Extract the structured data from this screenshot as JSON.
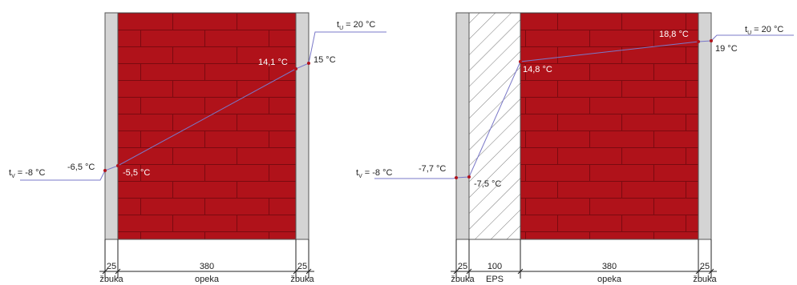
{
  "colors": {
    "brick": "#b0121a",
    "mortar": "#7a0a10",
    "plaster": "#d4d4d4",
    "line": "#7a78c8",
    "ink": "#222222"
  },
  "left_wall": {
    "outside_temp": "t",
    "outside_sub": "V",
    "outside_value": " = -8 °C",
    "inside_temp": "t",
    "inside_sub": "U",
    "inside_value": " = 20 °C",
    "surface_outer": "-6,5 °C",
    "interface_outer": "-5,5 °C",
    "interface_inner": "14,1 °C",
    "surface_inner": "15 °C",
    "dims": [
      "25",
      "380",
      "25"
    ],
    "layers": [
      "žbuka",
      "opeka",
      "žbuka"
    ]
  },
  "right_wall": {
    "outside_temp": "t",
    "outside_sub": "V",
    "outside_value": " = -8 °C",
    "inside_temp": "t",
    "inside_sub": "U",
    "inside_value": " = 20 °C",
    "surface_outer": "-7,7 °C",
    "interface_eps": "-7,5 °C",
    "interface_brick": "14,8 °C",
    "interface_inner": "18,8 °C",
    "surface_inner": "19 °C",
    "dims": [
      "25",
      "100",
      "380",
      "25"
    ],
    "layers": [
      "žbuka",
      "EPS",
      "opeka",
      "žbuka"
    ]
  }
}
